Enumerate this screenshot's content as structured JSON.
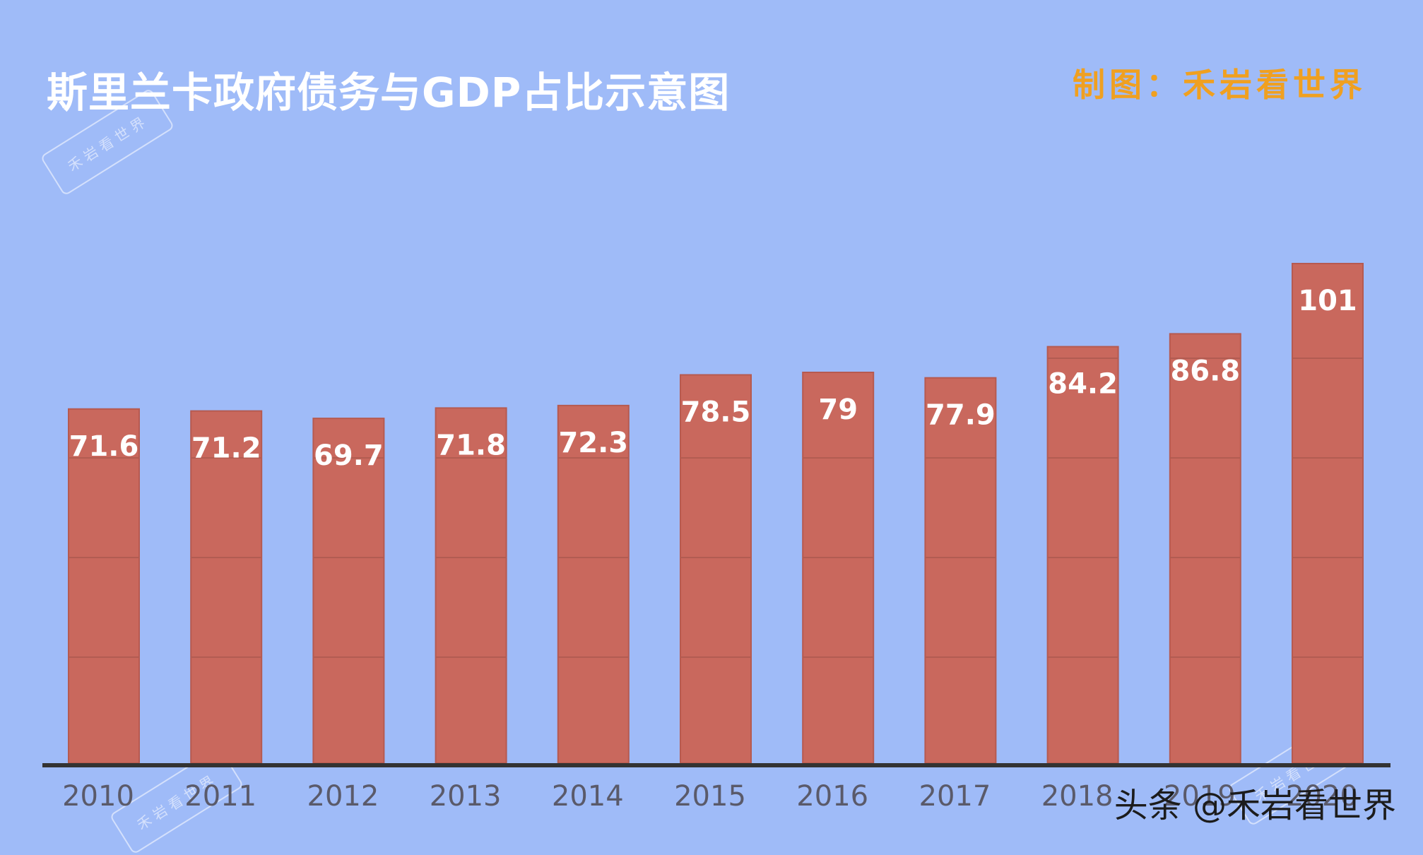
{
  "header": {
    "title": "斯里兰卡政府债务与GDP占比示意图",
    "credit": "制图：禾岩看世界"
  },
  "watermark": {
    "bottom_text": "头条 @禾岩看世界",
    "stamp_text": "禾岩看世界"
  },
  "colors": {
    "background": "#9fbbf8",
    "bar": "#c9685d",
    "bar_label": "#ffffff",
    "axis": "#333333",
    "tick_label": "#5a5a6a",
    "credit": "#f0a020"
  },
  "chart_data": {
    "type": "bar",
    "title": "斯里兰卡政府债务与GDP占比示意图",
    "categories": [
      "2010",
      "2011",
      "2012",
      "2013",
      "2014",
      "2015",
      "2016",
      "2017",
      "2018",
      "2019",
      "2020"
    ],
    "values": [
      71.6,
      71.2,
      69.7,
      71.8,
      72.3,
      78.5,
      79,
      77.9,
      84.2,
      86.8,
      101
    ],
    "data_labels": [
      "71.6",
      "71.2",
      "69.7",
      "71.8",
      "72.3",
      "78.5",
      "79",
      "77.9",
      "84.2",
      "86.8",
      "101"
    ],
    "xlabel": "",
    "ylabel": "",
    "ylim": [
      0,
      101
    ],
    "grid": false,
    "legend": "none"
  }
}
